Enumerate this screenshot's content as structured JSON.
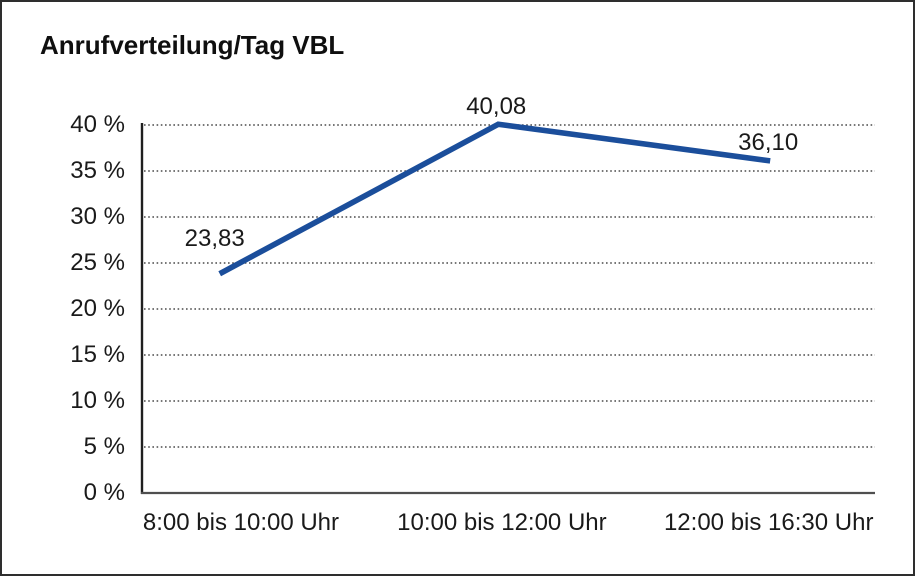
{
  "window": {
    "background": "#ffffff",
    "border_color": "#2e2e2e"
  },
  "chart_data": {
    "type": "line",
    "title": "Anrufverteilung/Tag VBL",
    "categories": [
      "8:00 bis 10:00 Uhr",
      "10:00 bis 12:00 Uhr",
      "12:00 bis 16:30 Uhr"
    ],
    "values": [
      23.83,
      40.08,
      36.1
    ],
    "data_labels": [
      "23,83",
      "40,08",
      "36,10"
    ],
    "y_ticks": [
      "0 %",
      "5 %",
      "10 %",
      "15 %",
      "20 %",
      "25 %",
      "30 %",
      "35 %",
      "40 %"
    ],
    "ylim": [
      0,
      40
    ],
    "y_tick_step": 5,
    "xlabel": "",
    "ylabel": "",
    "legend": "none",
    "grid": "horizontal-dotted",
    "line_color": "#1b4e9b",
    "grid_color": "#4a4a4a",
    "axis_color": "#2b2b2b",
    "text_color": "#1a1a1a"
  }
}
